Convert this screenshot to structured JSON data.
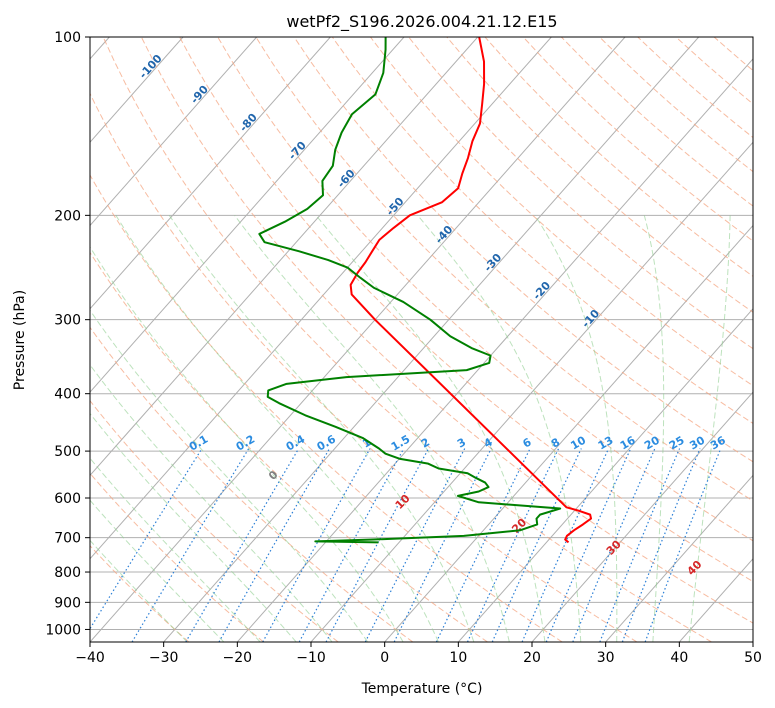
{
  "chart_data": {
    "type": "skew-t",
    "title": "wetPf2_S196.2026.004.21.12.E15",
    "xlabel": "Temperature (°C)",
    "ylabel": "Pressure (hPa)",
    "xlim": [
      -40,
      50
    ],
    "ylim": [
      1050,
      100
    ],
    "x_ticks": [
      -40,
      -30,
      -20,
      -10,
      0,
      10,
      20,
      30,
      40,
      50
    ],
    "x_tick_labels": [
      "−40",
      "−30",
      "−20",
      "−10",
      "0",
      "10",
      "20",
      "30",
      "40",
      "50"
    ],
    "y_ticks": [
      100,
      200,
      300,
      400,
      500,
      600,
      700,
      800,
      900,
      1000
    ],
    "y_tick_labels": [
      "100",
      "200",
      "300",
      "400",
      "500",
      "600",
      "700",
      "800",
      "900",
      "1000"
    ],
    "series": [
      {
        "name": "temperature",
        "color": "#ff0000",
        "points": [
          [
            713,
            13.0
          ],
          [
            705,
            12.2
          ],
          [
            695,
            12.0
          ],
          [
            680,
            12.3
          ],
          [
            665,
            12.8
          ],
          [
            650,
            13.2
          ],
          [
            640,
            12.6
          ],
          [
            630,
            10.5
          ],
          [
            622,
            8.5
          ],
          [
            300,
            -40.0
          ],
          [
            272,
            -46.2
          ],
          [
            262,
            -47.5
          ],
          [
            250,
            -48.0
          ],
          [
            240,
            -48.2
          ],
          [
            230,
            -48.6
          ],
          [
            220,
            -49.0
          ],
          [
            210,
            -48.5
          ],
          [
            200,
            -47.8
          ],
          [
            190,
            -45.0
          ],
          [
            180,
            -44.5
          ],
          [
            170,
            -45.7
          ],
          [
            160,
            -46.8
          ],
          [
            150,
            -48.2
          ],
          [
            140,
            -49.3
          ],
          [
            130,
            -51.3
          ],
          [
            120,
            -53.5
          ],
          [
            110,
            -56.2
          ],
          [
            100,
            -59.8
          ]
        ]
      },
      {
        "name": "dewpoint",
        "color": "#008000",
        "points": [
          [
            713,
            -12.8
          ],
          [
            710,
            -21.5
          ],
          [
            705,
            -13.8
          ],
          [
            695,
            -2.0
          ],
          [
            680,
            5.0
          ],
          [
            665,
            6.6
          ],
          [
            650,
            5.8
          ],
          [
            640,
            5.8
          ],
          [
            625,
            7.8
          ],
          [
            610,
            -4.0
          ],
          [
            595,
            -7.6
          ],
          [
            585,
            -5.3
          ],
          [
            575,
            -4.5
          ],
          [
            565,
            -5.5
          ],
          [
            555,
            -7.3
          ],
          [
            545,
            -9.0
          ],
          [
            535,
            -13.5
          ],
          [
            525,
            -15.5
          ],
          [
            515,
            -20.0
          ],
          [
            505,
            -22.5
          ],
          [
            495,
            -24.0
          ],
          [
            475,
            -27.5
          ],
          [
            455,
            -32.5
          ],
          [
            435,
            -38.0
          ],
          [
            415,
            -43.0
          ],
          [
            405,
            -45.3
          ],
          [
            395,
            -46.0
          ],
          [
            385,
            -44.3
          ],
          [
            375,
            -37.0
          ],
          [
            365,
            -21.5
          ],
          [
            355,
            -19.3
          ],
          [
            345,
            -20.0
          ],
          [
            335,
            -23.5
          ],
          [
            320,
            -27.8
          ],
          [
            300,
            -32.5
          ],
          [
            280,
            -38.3
          ],
          [
            265,
            -44.0
          ],
          [
            255,
            -47.0
          ],
          [
            245,
            -50.0
          ],
          [
            238,
            -53.5
          ],
          [
            230,
            -58.5
          ],
          [
            222,
            -64.3
          ],
          [
            215,
            -66.0
          ],
          [
            205,
            -64.0
          ],
          [
            195,
            -62.5
          ],
          [
            185,
            -62.0
          ],
          [
            175,
            -63.8
          ],
          [
            165,
            -64.2
          ],
          [
            155,
            -65.8
          ],
          [
            145,
            -67.0
          ],
          [
            135,
            -67.8
          ],
          [
            125,
            -67.0
          ],
          [
            115,
            -68.5
          ],
          [
            105,
            -71.0
          ],
          [
            100,
            -72.5
          ]
        ]
      }
    ],
    "isotherm_labels": [
      "-100",
      "-90",
      "-80",
      "-70",
      "-60",
      "-50",
      "-40",
      "-30",
      "-20",
      "-10"
    ],
    "mixing_ratio_labels": [
      "0.1",
      "0.2",
      "0.4",
      "0.6",
      "1",
      "1.5",
      "2",
      "3",
      "4",
      "6",
      "8",
      "10",
      "13",
      "16",
      "20",
      "25",
      "30",
      "36"
    ],
    "moist_adiabat_labels": [
      "0",
      "10",
      "20",
      "30",
      "40"
    ]
  }
}
